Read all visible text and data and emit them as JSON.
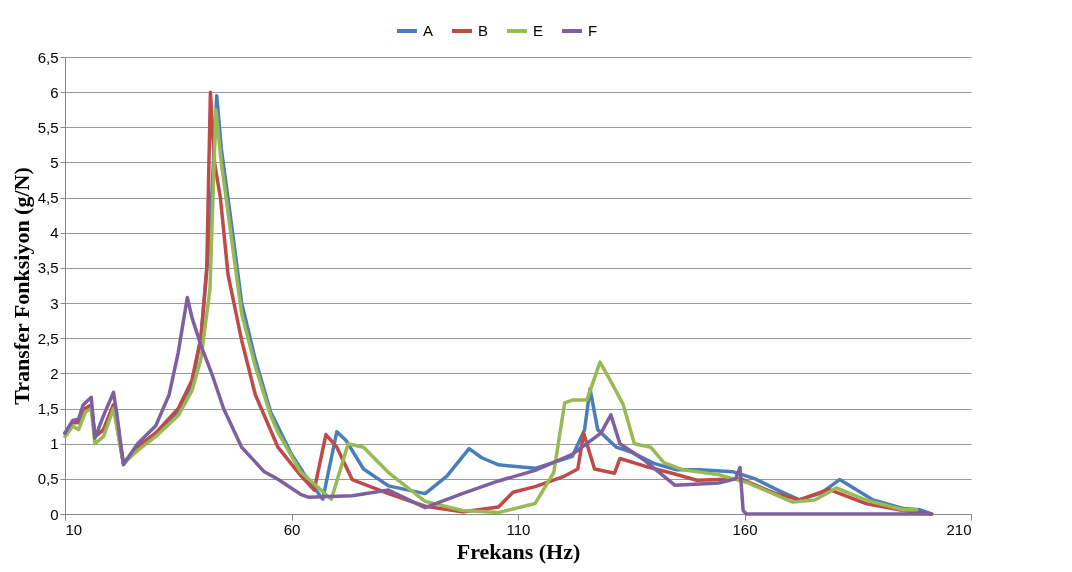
{
  "chart_data": {
    "type": "line",
    "xlabel": "Frekans (Hz)",
    "ylabel": "Transfer Fonksiyon (g/N)",
    "xlim": [
      10,
      210
    ],
    "xticks": [
      10,
      60,
      110,
      160,
      210
    ],
    "ylim": [
      0,
      6.5
    ],
    "yticks": [
      0,
      {
        "value": 0.5,
        "label": "0,5"
      },
      1,
      {
        "value": 1.5,
        "label": "1,5"
      },
      2,
      {
        "value": 2.5,
        "label": "2,5"
      },
      3,
      {
        "value": 3.5,
        "label": "3,5"
      },
      4,
      {
        "value": 4.5,
        "label": "4,5"
      },
      5,
      {
        "value": 5.5,
        "label": "5,5"
      },
      6,
      {
        "value": 6.5,
        "label": "6,5"
      }
    ],
    "grid": "y",
    "legend": "top",
    "marker": "none",
    "line_style": "solid",
    "series": [
      {
        "name": "A",
        "color": "#4a7ebb",
        "x": [
          10,
          11.7,
          13,
          14.5,
          15.8,
          16.6,
          18.5,
          20.7,
          22.9,
          26,
          30,
          35,
          38,
          40,
          42,
          43.5,
          44.5,
          47,
          49,
          52,
          55.4,
          60,
          63,
          66.9,
          70,
          72,
          75.9,
          81.4,
          89.5,
          94.3,
          99.2,
          102,
          105.7,
          113.8,
          122,
          124.7,
          125.9,
          127.6,
          131.7,
          135,
          140,
          145,
          150,
          157.5,
          162.4,
          167,
          172.1,
          177,
          181,
          188.4,
          195,
          198.8,
          201.3
        ],
        "values": [
          1.15,
          1.3,
          1.3,
          1.5,
          1.55,
          1.1,
          1.2,
          1.55,
          0.72,
          0.95,
          1.15,
          1.45,
          1.85,
          2.5,
          4.0,
          5.95,
          5.2,
          4.0,
          3.0,
          2.2,
          1.45,
          0.85,
          0.55,
          0.21,
          1.17,
          1.05,
          0.64,
          0.4,
          0.29,
          0.54,
          0.93,
          0.8,
          0.7,
          0.65,
          0.82,
          1.2,
          1.78,
          1.2,
          0.95,
          0.88,
          0.72,
          0.63,
          0.63,
          0.6,
          0.5,
          0.35,
          0.2,
          0.3,
          0.49,
          0.2,
          0.08,
          0.06,
          0
        ]
      },
      {
        "name": "B",
        "color": "#be4b48",
        "x": [
          10,
          11.7,
          13,
          14.5,
          15.8,
          16.6,
          18.5,
          20.7,
          22.9,
          26,
          30,
          35,
          38,
          40,
          41.3,
          42.1,
          43,
          44.3,
          46,
          49,
          52,
          57,
          62,
          65,
          67.6,
          70,
          73.4,
          81.4,
          89.5,
          97.7,
          105.7,
          108.9,
          113.8,
          120.3,
          123.2,
          124.5,
          126.9,
          131.3,
          132.5,
          138,
          144,
          149.5,
          159.2,
          166.5,
          172.1,
          178.6,
          186.7,
          195,
          201.3
        ],
        "values": [
          1.15,
          1.3,
          1.3,
          1.5,
          1.55,
          1.1,
          1.2,
          1.55,
          0.72,
          0.95,
          1.15,
          1.5,
          1.9,
          2.5,
          3.5,
          6.0,
          5.0,
          4.5,
          3.4,
          2.47,
          1.7,
          0.95,
          0.55,
          0.34,
          1.13,
          0.95,
          0.49,
          0.29,
          0.11,
          0.03,
          0.1,
          0.31,
          0.39,
          0.54,
          0.64,
          1.15,
          0.64,
          0.58,
          0.79,
          0.68,
          0.58,
          0.48,
          0.5,
          0.3,
          0.2,
          0.35,
          0.15,
          0.05,
          0
        ]
      },
      {
        "name": "E",
        "color": "#98b954",
        "x": [
          10,
          11.7,
          13,
          14.5,
          15.8,
          16.6,
          18.5,
          20.7,
          22.9,
          26,
          30,
          35,
          38,
          40,
          42,
          43.3,
          44.5,
          47,
          49,
          52,
          55.4,
          57.1,
          62,
          68.8,
          72.5,
          75.9,
          81.4,
          89.5,
          97.7,
          105.7,
          113.8,
          117.9,
          120.3,
          122,
          125.2,
          128.1,
          130.8,
          133.2,
          135.7,
          139.3,
          142.2,
          146.3,
          154.3,
          160.9,
          170.6,
          175.5,
          180.3,
          186.7,
          195,
          198
        ],
        "values": [
          1.1,
          1.25,
          1.2,
          1.45,
          1.5,
          1.0,
          1.1,
          1.5,
          0.72,
          0.9,
          1.1,
          1.4,
          1.75,
          2.2,
          3.2,
          5.75,
          5.0,
          3.8,
          2.85,
          2.1,
          1.4,
          1.15,
          0.6,
          0.21,
          1.0,
          0.95,
          0.59,
          0.18,
          0.05,
          0.02,
          0.15,
          0.59,
          1.58,
          1.62,
          1.62,
          2.16,
          1.85,
          1.56,
          1.0,
          0.95,
          0.73,
          0.63,
          0.56,
          0.44,
          0.17,
          0.2,
          0.37,
          0.2,
          0.06,
          0.06
        ]
      },
      {
        "name": "F",
        "color": "#7d60a0",
        "x": [
          10,
          11.7,
          13,
          14,
          15.8,
          16.6,
          18.5,
          20.7,
          21.5,
          22.9,
          26,
          30,
          33,
          35,
          37,
          38,
          40,
          42.6,
          45,
          49,
          54,
          57.1,
          62,
          63.7,
          73.4,
          81.4,
          89.5,
          97.7,
          105.7,
          113.8,
          122,
          128.3,
          130.5,
          132.5,
          138,
          144.6,
          154.3,
          158,
          159,
          159.7,
          160.4,
          201.3
        ],
        "values": [
          1.15,
          1.33,
          1.35,
          1.55,
          1.66,
          1.08,
          1.4,
          1.73,
          1.4,
          0.7,
          1.0,
          1.25,
          1.7,
          2.3,
          3.08,
          2.8,
          2.4,
          1.96,
          1.5,
          0.95,
          0.6,
          0.49,
          0.28,
          0.24,
          0.26,
          0.34,
          0.09,
          0.29,
          0.47,
          0.62,
          0.85,
          1.15,
          1.41,
          1.0,
          0.76,
          0.41,
          0.44,
          0.5,
          0.66,
          0.05,
          0,
          0
        ]
      }
    ]
  }
}
